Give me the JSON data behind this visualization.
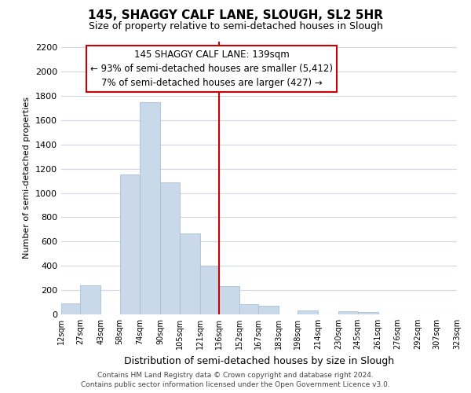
{
  "title": "145, SHAGGY CALF LANE, SLOUGH, SL2 5HR",
  "subtitle": "Size of property relative to semi-detached houses in Slough",
  "xlabel": "Distribution of semi-detached houses by size in Slough",
  "ylabel": "Number of semi-detached properties",
  "bar_edges": [
    12,
    27,
    43,
    58,
    74,
    90,
    105,
    121,
    136,
    152,
    167,
    183,
    198,
    214,
    230,
    245,
    261,
    276,
    292,
    307,
    323
  ],
  "bar_heights": [
    90,
    240,
    0,
    1150,
    1750,
    1090,
    670,
    400,
    230,
    85,
    70,
    0,
    35,
    0,
    25,
    20,
    0,
    0,
    0,
    0
  ],
  "bar_color": "#c9d9ea",
  "bar_edgecolor": "#a8c0d6",
  "tick_labels": [
    "12sqm",
    "27sqm",
    "43sqm",
    "58sqm",
    "74sqm",
    "90sqm",
    "105sqm",
    "121sqm",
    "136sqm",
    "152sqm",
    "167sqm",
    "183sqm",
    "198sqm",
    "214sqm",
    "230sqm",
    "245sqm",
    "261sqm",
    "276sqm",
    "292sqm",
    "307sqm",
    "323sqm"
  ],
  "property_line_x": 136,
  "property_line_color": "#cc0000",
  "ylim": [
    0,
    2250
  ],
  "yticks": [
    0,
    200,
    400,
    600,
    800,
    1000,
    1200,
    1400,
    1600,
    1800,
    2000,
    2200
  ],
  "annotation_title": "145 SHAGGY CALF LANE: 139sqm",
  "annotation_line1": "← 93% of semi-detached houses are smaller (5,412)",
  "annotation_line2": "7% of semi-detached houses are larger (427) →",
  "annotation_box_color": "#ffffff",
  "annotation_box_edgecolor": "#cc0000",
  "footer_line1": "Contains HM Land Registry data © Crown copyright and database right 2024.",
  "footer_line2": "Contains public sector information licensed under the Open Government Licence v3.0.",
  "background_color": "#ffffff",
  "grid_color": "#d0d8e4"
}
